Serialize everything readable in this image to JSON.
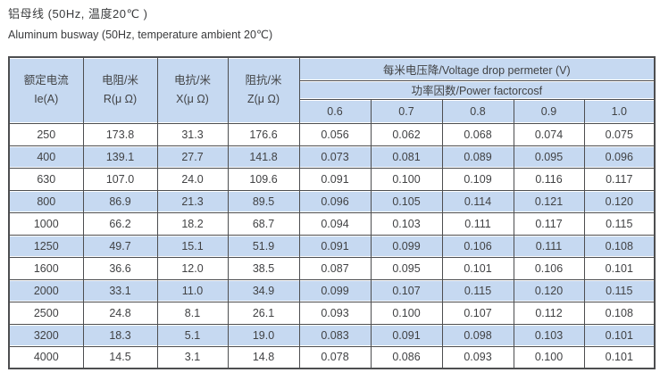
{
  "page": {
    "title_zh": "铝母线 (50Hz, 温度20℃ )",
    "title_en": "Aluminum busway (50Hz, temperature ambient 20℃)"
  },
  "colors": {
    "cell_blue": "#c6d9f1",
    "border_dark": "#4d4e50",
    "text": "#414244",
    "row_white": "#ffffff"
  },
  "table": {
    "headers": {
      "rated_current_zh": "额定电流",
      "rated_current_en": "Ie(A)",
      "resistance_zh": "电阻/米",
      "resistance_en": "R(μ Ω)",
      "reactance_zh": "电抗/米",
      "reactance_en": "X(μ Ω)",
      "impedance_zh": "阻抗/米",
      "impedance_en": "Z(μ Ω)",
      "voltage_drop": "每米电压降/Voltage drop permeter (V)",
      "power_factor": "功率因数/Power factorcosf",
      "pf_values": [
        "0.6",
        "0.7",
        "0.8",
        "0.9",
        "1.0"
      ]
    },
    "rows": [
      {
        "rated_current": "250",
        "resistance": "173.8",
        "reactance": "31.3",
        "impedance": "176.6",
        "voltage_drops": [
          "0.056",
          "0.062",
          "0.068",
          "0.074",
          "0.075"
        ]
      },
      {
        "rated_current": "400",
        "resistance": "139.1",
        "reactance": "27.7",
        "impedance": "141.8",
        "voltage_drops": [
          "0.073",
          "0.081",
          "0.089",
          "0.095",
          "0.096"
        ]
      },
      {
        "rated_current": "630",
        "resistance": "107.0",
        "reactance": "24.0",
        "impedance": "109.6",
        "voltage_drops": [
          "0.091",
          "0.100",
          "0.109",
          "0.116",
          "0.117"
        ]
      },
      {
        "rated_current": "800",
        "resistance": "86.9",
        "reactance": "21.3",
        "impedance": "89.5",
        "voltage_drops": [
          "0.096",
          "0.105",
          "0.114",
          "0.121",
          "0.120"
        ]
      },
      {
        "rated_current": "1000",
        "resistance": "66.2",
        "reactance": "18.2",
        "impedance": "68.7",
        "voltage_drops": [
          "0.094",
          "0.103",
          "0.111",
          "0.117",
          "0.115"
        ]
      },
      {
        "rated_current": "1250",
        "resistance": "49.7",
        "reactance": "15.1",
        "impedance": "51.9",
        "voltage_drops": [
          "0.091",
          "0.099",
          "0.106",
          "0.111",
          "0.108"
        ]
      },
      {
        "rated_current": "1600",
        "resistance": "36.6",
        "reactance": "12.0",
        "impedance": "38.5",
        "voltage_drops": [
          "0.087",
          "0.095",
          "0.101",
          "0.106",
          "0.101"
        ]
      },
      {
        "rated_current": "2000",
        "resistance": "33.1",
        "reactance": "11.0",
        "impedance": "34.9",
        "voltage_drops": [
          "0.099",
          "0.107",
          "0.115",
          "0.120",
          "0.115"
        ]
      },
      {
        "rated_current": "2500",
        "resistance": "24.8",
        "reactance": "8.1",
        "impedance": "26.1",
        "voltage_drops": [
          "0.093",
          "0.100",
          "0.107",
          "0.112",
          "0.108"
        ]
      },
      {
        "rated_current": "3200",
        "resistance": "18.3",
        "reactance": "5.1",
        "impedance": "19.0",
        "voltage_drops": [
          "0.083",
          "0.091",
          "0.098",
          "0.103",
          "0.101"
        ]
      },
      {
        "rated_current": "4000",
        "resistance": "14.5",
        "reactance": "3.1",
        "impedance": "14.8",
        "voltage_drops": [
          "0.078",
          "0.086",
          "0.093",
          "0.100",
          "0.101"
        ]
      }
    ]
  }
}
